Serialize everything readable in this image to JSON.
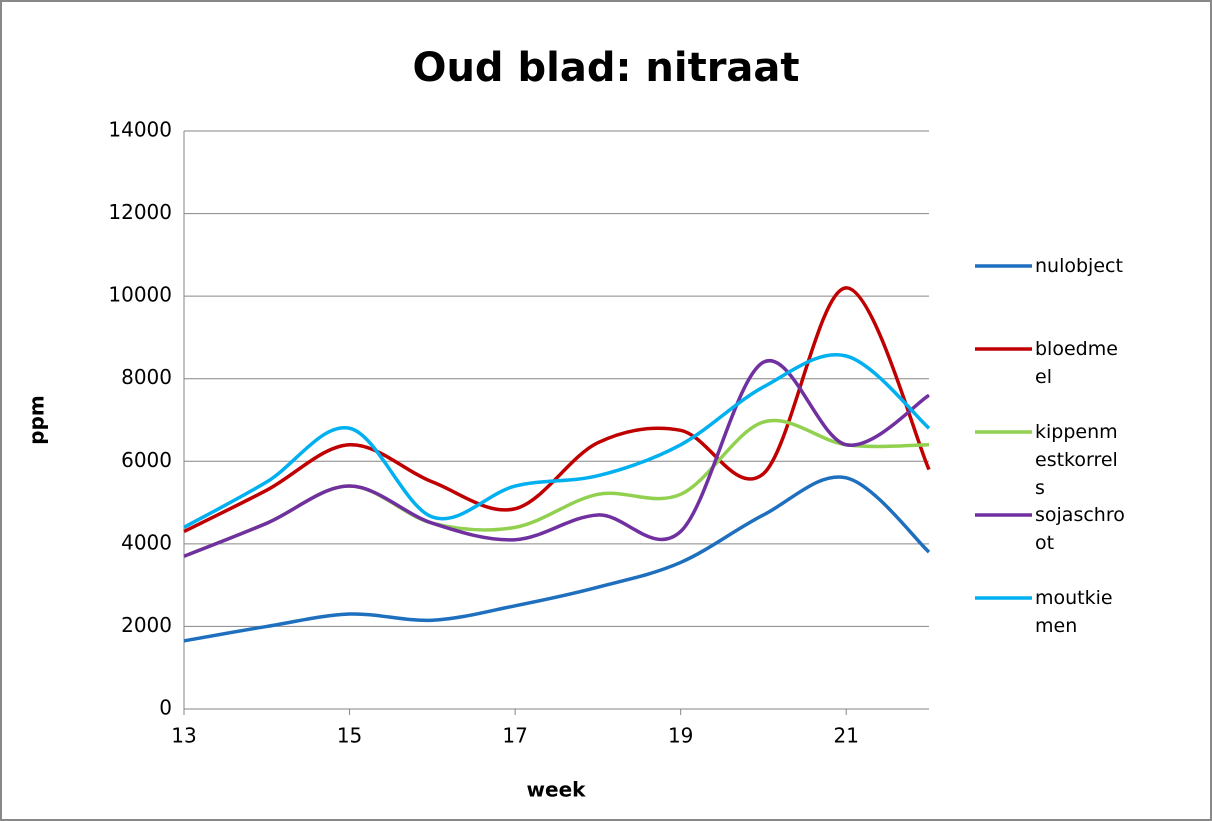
{
  "chart_data": {
    "type": "line",
    "title": "Oud blad: nitraat",
    "x_label": "week",
    "y_label": "ppm",
    "x": [
      13,
      14,
      15,
      16,
      17,
      18,
      19,
      20,
      21,
      22
    ],
    "xlim": [
      13,
      22
    ],
    "xticks": [
      13,
      15,
      17,
      19,
      21
    ],
    "ylim": [
      0,
      14000
    ],
    "yticks": [
      0,
      2000,
      4000,
      6000,
      8000,
      10000,
      12000,
      14000
    ],
    "grid": true,
    "smooth": true,
    "legend": "right",
    "series": [
      {
        "name": "nulobject",
        "color": "#1f6fbf",
        "values": [
          1650,
          2000,
          2300,
          2150,
          2500,
          2950,
          3550,
          4700,
          5600,
          3800
        ]
      },
      {
        "name": "bloedmeel",
        "color": "#c00000",
        "values": [
          4300,
          5300,
          6400,
          5500,
          4850,
          6450,
          6750,
          5700,
          10200,
          5800
        ]
      },
      {
        "name": "kippenmestkorrels",
        "color": "#92d050",
        "values": [
          3700,
          4500,
          5400,
          4500,
          4400,
          5200,
          5200,
          6950,
          6400,
          6400
        ]
      },
      {
        "name": "sojaschroot",
        "color": "#7030a0",
        "values": [
          3700,
          4500,
          5400,
          4500,
          4100,
          4700,
          4300,
          8400,
          6400,
          7600
        ]
      },
      {
        "name": "moutkiemen",
        "color": "#00b0f0",
        "values": [
          4400,
          5500,
          6800,
          4650,
          5400,
          5650,
          6400,
          7800,
          8550,
          6800
        ]
      }
    ]
  }
}
